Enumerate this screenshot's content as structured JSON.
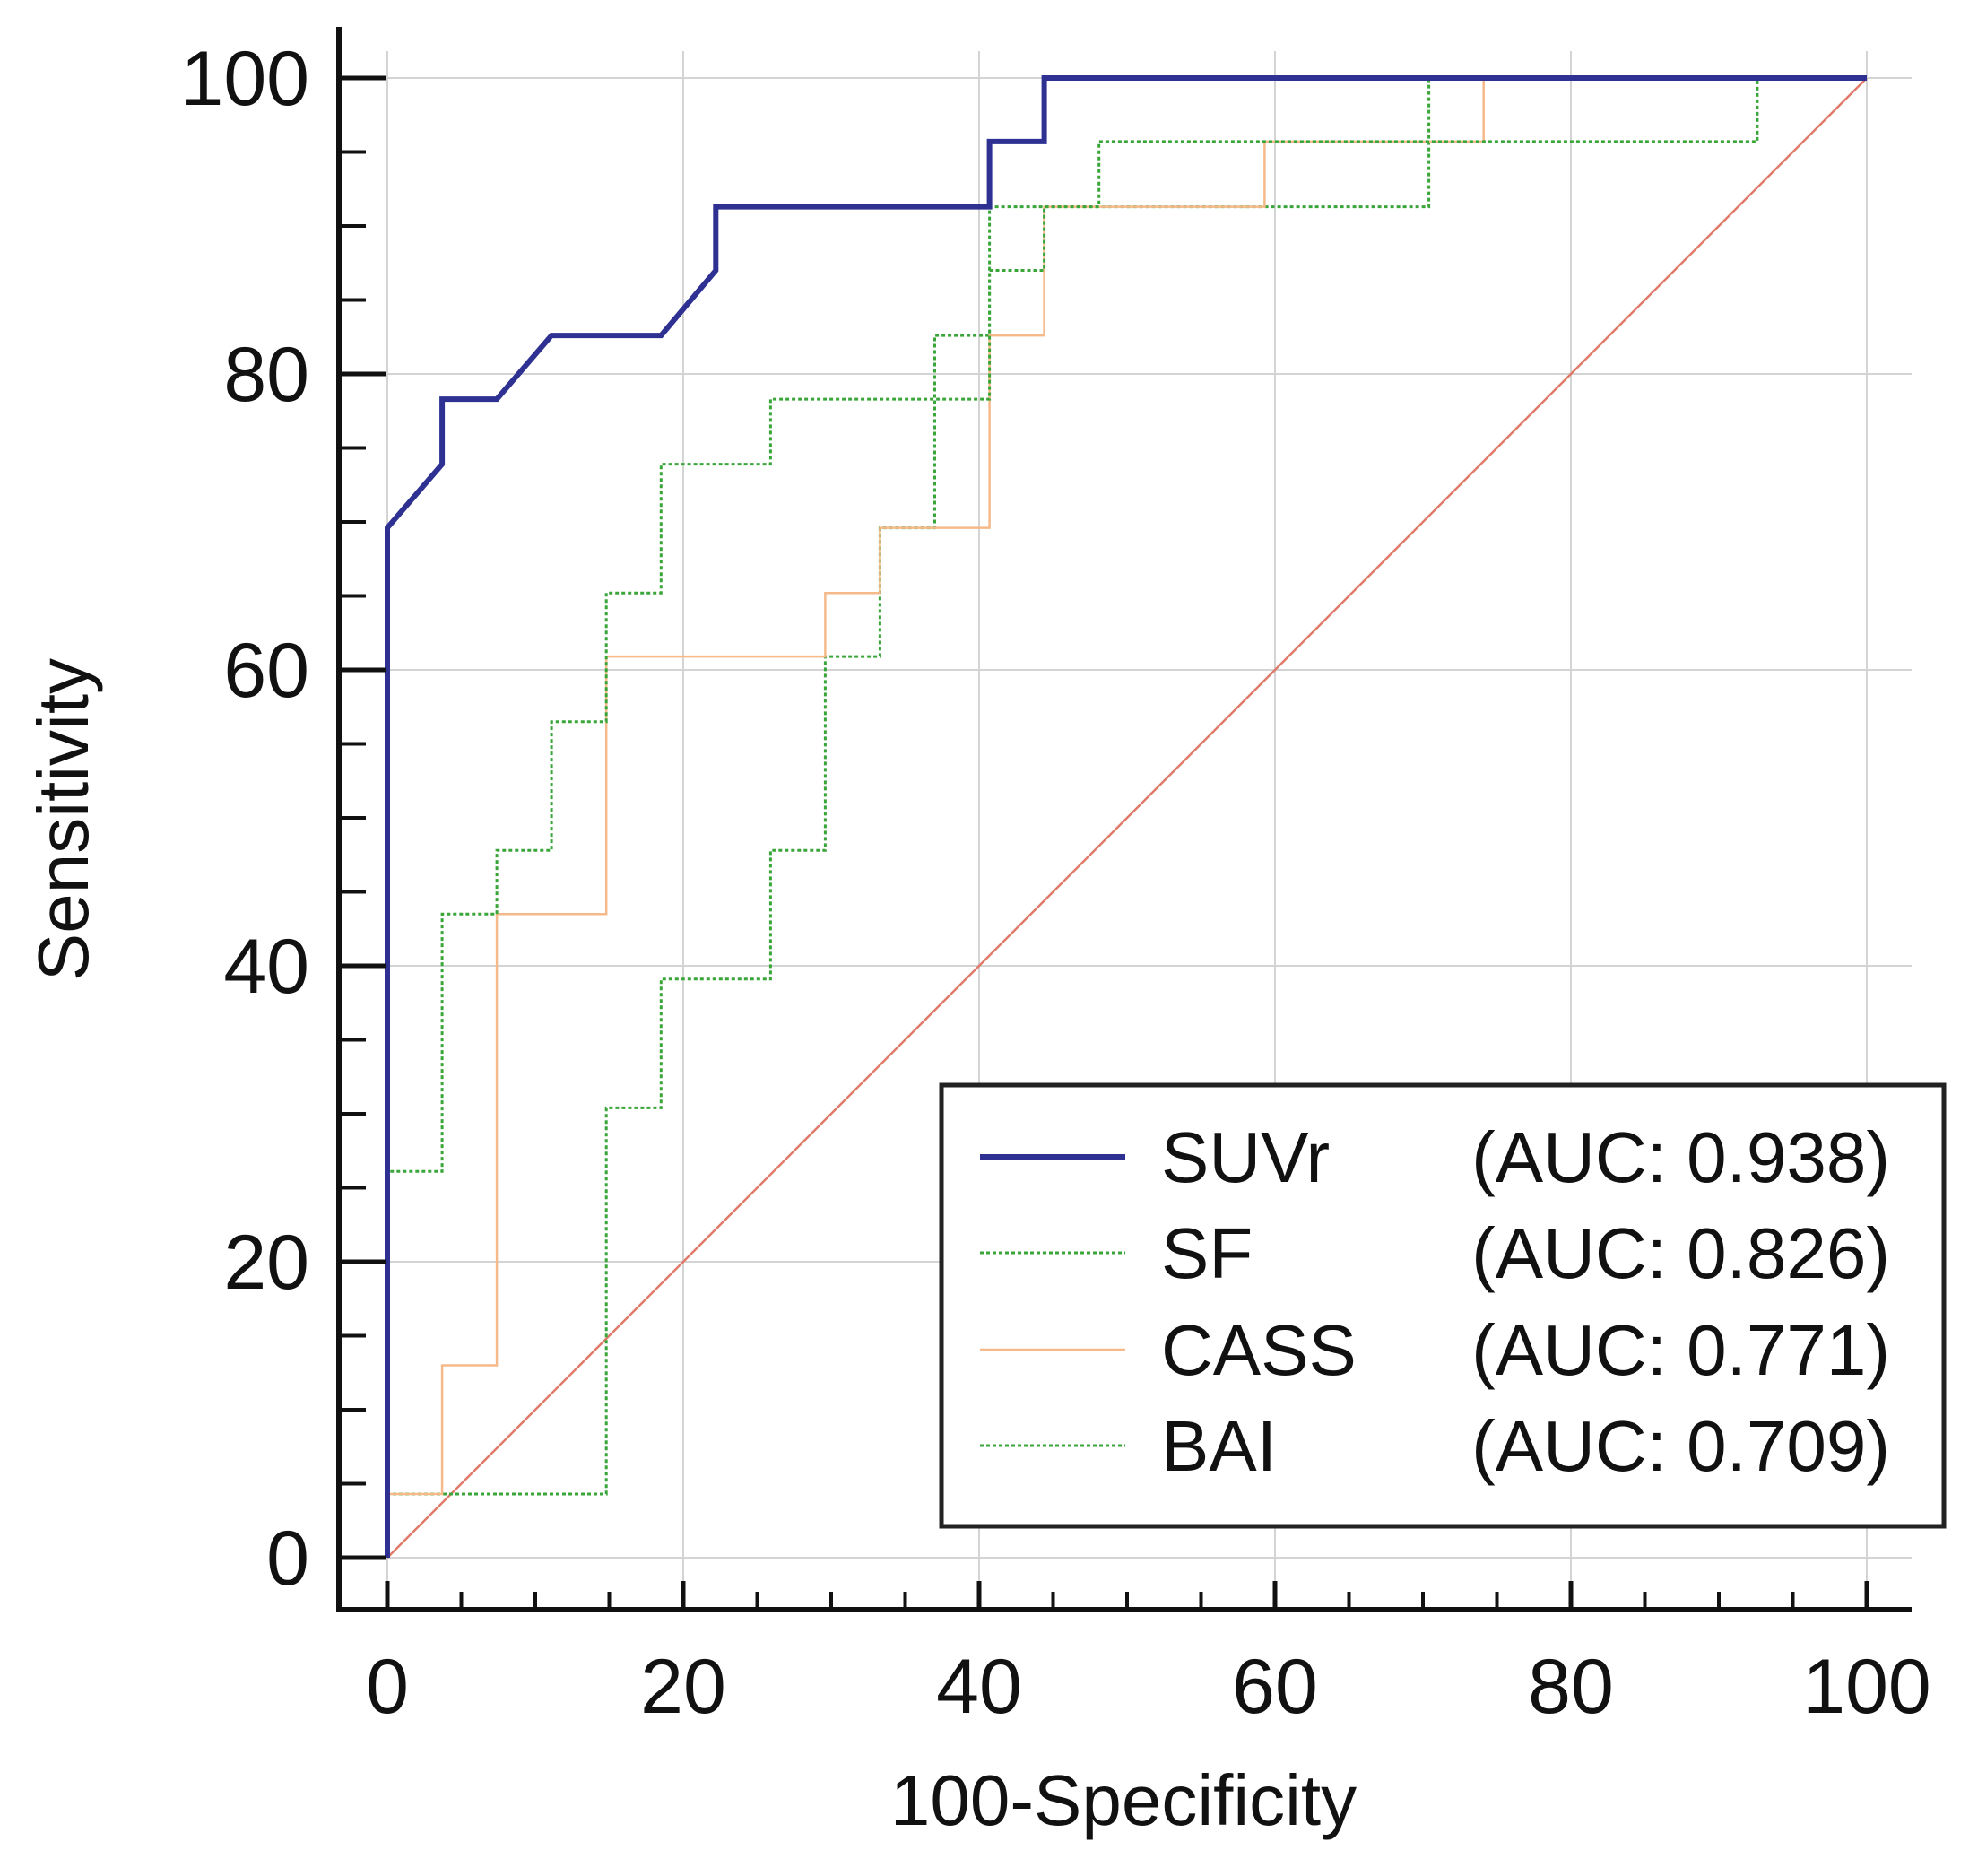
{
  "chart_data": {
    "type": "line",
    "title": "",
    "xlabel": "100-Specificity",
    "ylabel": "Sensitivity",
    "xlim": [
      0,
      100
    ],
    "ylim": [
      0,
      100
    ],
    "xticks": [
      "0",
      "20",
      "40",
      "60",
      "80",
      "100"
    ],
    "yticks": [
      "0",
      "20",
      "40",
      "60",
      "80",
      "100"
    ],
    "grid": true,
    "legend_position": "bottom-right",
    "series": [
      {
        "name": "SUVr",
        "auc_label": "(AUC: 0.938)",
        "color": "#2e3192",
        "style": "solid-thick",
        "x": [
          0,
          0,
          3.7,
          3.7,
          7.4,
          11.1,
          18.5,
          22.2,
          22.2,
          40.7,
          40.7,
          44.4,
          44.4,
          100
        ],
        "y": [
          0,
          69.6,
          73.9,
          78.3,
          78.3,
          82.6,
          82.6,
          87.0,
          91.3,
          91.3,
          95.7,
          95.7,
          100,
          100
        ]
      },
      {
        "name": "SF",
        "auc_label": "(AUC: 0.826)",
        "color": "#3aa63a",
        "style": "dotted",
        "x": [
          0,
          0,
          3.7,
          3.7,
          7.4,
          7.4,
          11.1,
          11.1,
          14.8,
          14.8,
          18.5,
          18.5,
          25.9,
          25.9,
          40.7,
          40.7,
          44.4,
          44.4,
          48.1,
          48.1,
          92.6,
          92.6,
          100
        ],
        "y": [
          0,
          26.1,
          26.1,
          43.5,
          43.5,
          47.8,
          47.8,
          56.5,
          56.5,
          65.2,
          65.2,
          73.9,
          73.9,
          78.3,
          78.3,
          87.0,
          87.0,
          91.3,
          91.3,
          95.7,
          95.7,
          100,
          100
        ]
      },
      {
        "name": "CASS",
        "auc_label": "(AUC: 0.771)",
        "color": "#f5b98a",
        "style": "solid-thin",
        "x": [
          0,
          3.7,
          3.7,
          7.4,
          7.4,
          14.8,
          14.8,
          29.6,
          29.6,
          33.3,
          33.3,
          40.7,
          40.7,
          44.4,
          44.4,
          59.3,
          59.3,
          74.1,
          74.1,
          100
        ],
        "y": [
          4.3,
          4.3,
          13.0,
          13.0,
          43.5,
          43.5,
          60.9,
          60.9,
          65.2,
          65.2,
          69.6,
          69.6,
          82.6,
          82.6,
          91.3,
          91.3,
          95.7,
          95.7,
          100,
          100
        ]
      },
      {
        "name": "BAI",
        "auc_label": "(AUC: 0.709)",
        "color": "#3aa63a",
        "style": "dotted",
        "x": [
          0,
          0,
          14.8,
          14.8,
          18.5,
          18.5,
          25.9,
          25.9,
          29.6,
          29.6,
          33.3,
          33.3,
          37.0,
          37.0,
          40.7,
          40.7,
          70.4,
          70.4,
          100
        ],
        "y": [
          0,
          4.3,
          4.3,
          30.4,
          30.4,
          39.1,
          39.1,
          47.8,
          47.8,
          60.9,
          60.9,
          69.6,
          69.6,
          82.6,
          82.6,
          91.3,
          91.3,
          100,
          100
        ]
      }
    ],
    "reference_line": {
      "x": [
        0,
        100
      ],
      "y": [
        0,
        100
      ],
      "color": "#e07a6a"
    }
  }
}
